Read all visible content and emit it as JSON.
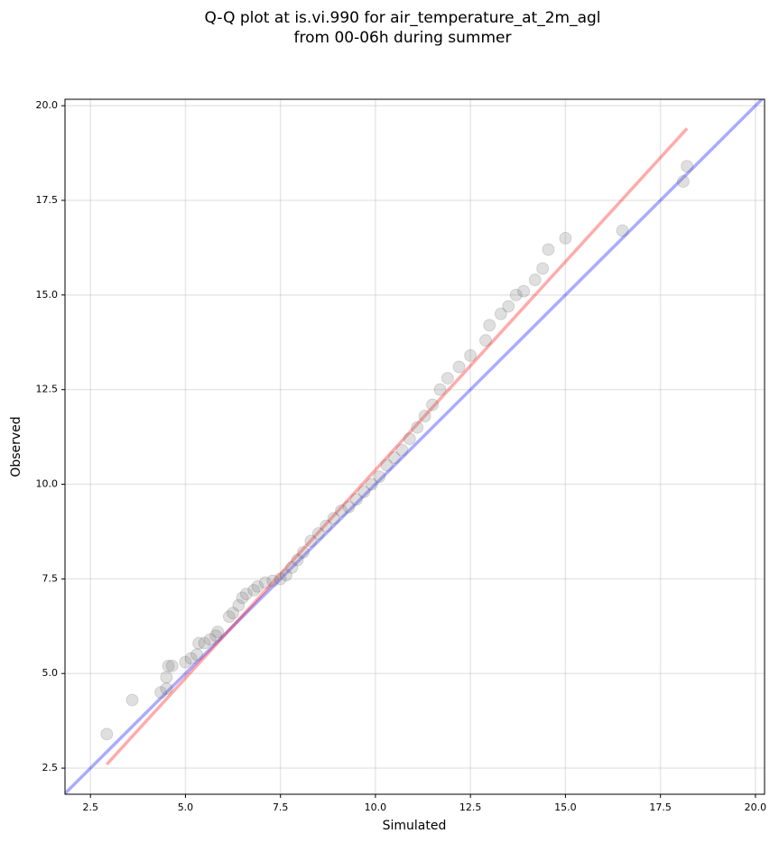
{
  "chart_data": {
    "type": "scatter",
    "title": [
      "Q-Q plot at is.vi.990 for air_temperature_at_2m_agl",
      "from 00-06h during summer"
    ],
    "xlabel": "Simulated",
    "ylabel": "Observed",
    "color": "#808080",
    "grid": true,
    "xlim": [
      1.83,
      20.24
    ],
    "ylim": [
      1.81,
      20.17
    ],
    "xticks": [
      2.5,
      {
        "value": 5,
        "label": "5.0"
      },
      7.5,
      {
        "value": 10,
        "label": "10.0"
      },
      12.5,
      {
        "value": 15,
        "label": "15.0"
      },
      17.5,
      {
        "value": 20,
        "label": "20.0"
      }
    ],
    "yticks": [
      2.5,
      {
        "value": 5,
        "label": "5.0"
      },
      7.5,
      {
        "value": 10,
        "label": "10.0"
      },
      12.5,
      {
        "value": 15,
        "label": "15.0"
      },
      17.5,
      {
        "value": 20,
        "label": "20.0"
      }
    ],
    "x": [
      2.93,
      3.6,
      4.35,
      4.5,
      4.5,
      4.55,
      4.65,
      5.0,
      5.15,
      5.3,
      5.35,
      5.5,
      5.65,
      5.8,
      5.85,
      6.15,
      6.25,
      6.4,
      6.5,
      6.6,
      6.8,
      6.9,
      7.1,
      7.3,
      7.5,
      7.65,
      7.8,
      7.95,
      8.1,
      8.3,
      8.5,
      8.7,
      8.9,
      9.1,
      9.3,
      9.5,
      9.7,
      9.9,
      10.1,
      10.3,
      10.5,
      10.7,
      10.9,
      11.1,
      11.3,
      11.5,
      11.7,
      11.9,
      12.2,
      12.5,
      12.9,
      13.0,
      13.3,
      13.5,
      13.7,
      13.9,
      14.2,
      14.4,
      14.55,
      15.0,
      16.5,
      18.1,
      18.2
    ],
    "y": [
      3.4,
      4.3,
      4.5,
      4.6,
      4.9,
      5.2,
      5.2,
      5.3,
      5.4,
      5.5,
      5.8,
      5.8,
      5.9,
      6.0,
      6.1,
      6.5,
      6.6,
      6.8,
      7.0,
      7.1,
      7.2,
      7.3,
      7.4,
      7.45,
      7.5,
      7.6,
      7.8,
      8.0,
      8.2,
      8.5,
      8.7,
      8.9,
      9.1,
      9.3,
      9.4,
      9.6,
      9.8,
      10.0,
      10.2,
      10.5,
      10.7,
      10.9,
      11.2,
      11.5,
      11.8,
      12.1,
      12.5,
      12.8,
      13.1,
      13.4,
      13.8,
      14.2,
      14.5,
      14.7,
      15.0,
      15.1,
      15.4,
      15.7,
      16.2,
      16.5,
      16.7,
      18.0,
      18.4
    ],
    "lines": [
      {
        "color": "#0000ff",
        "x": [
          1.83,
          20.24
        ],
        "y": [
          1.83,
          20.24
        ]
      },
      {
        "color": "#ff0000",
        "x": [
          2.93,
          18.2
        ],
        "y": [
          2.6,
          19.4
        ]
      }
    ]
  }
}
